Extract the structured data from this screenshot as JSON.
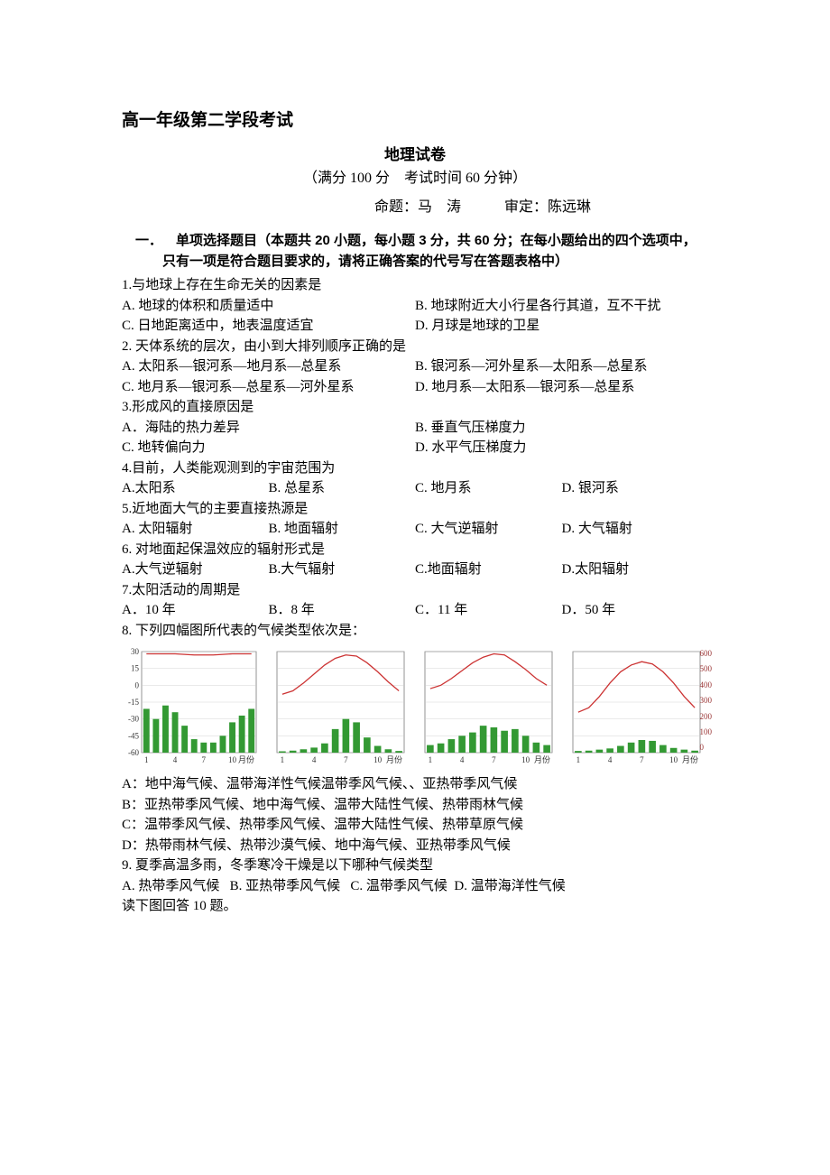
{
  "header": {
    "main_title": "高一年级第二学段考试",
    "sub_title": "地理试卷",
    "exam_info": "（满分 100 分 考试时间 60 分钟）",
    "author_info": "命题：马 涛   审定：陈远琳"
  },
  "section1": {
    "title": "一． 单项选择题目（本题共 20 小题，每小题 3 分，共 60 分；在每小题给出的四个选项中，只有一项是符合题目要求的，请将正确答案的代号写在答题表格中）"
  },
  "q1": {
    "text": "1.与地球上存在生命无关的因素是",
    "a": "A. 地球的体积和质量适中",
    "b": "B. 地球附近大小行星各行其道，互不干扰",
    "c": "C. 日地距离适中，地表温度适宜",
    "d": "D. 月球是地球的卫星"
  },
  "q2": {
    "text": "2. 天体系统的层次，由小到大排列顺序正确的是",
    "a": "A. 太阳系—银河系—地月系—总星系",
    "b": "B. 银河系—河外星系—太阳系—总星系",
    "c": "C. 地月系—银河系—总星系—河外星系",
    "d": "D. 地月系—太阳系—银河系—总星系"
  },
  "q3": {
    "text": "3.形成风的直接原因是",
    "a": "A．海陆的热力差异",
    "b": "B. 垂直气压梯度力",
    "c": "C. 地转偏向力",
    "d": "D. 水平气压梯度力"
  },
  "q4": {
    "text": "4.目前，人类能观测到的宇宙范围为",
    "a": "A.太阳系",
    "b": "B. 总星系",
    "c": "C. 地月系",
    "d": "D. 银河系"
  },
  "q5": {
    "text": "5.近地面大气的主要直接热源是",
    "a": "A. 太阳辐射",
    "b": "B. 地面辐射",
    "c": "C. 大气逆辐射",
    "d": "D. 大气辐射"
  },
  "q6": {
    "text": "6. 对地面起保温效应的辐射形式是",
    "a": "A.大气逆辐射",
    "b": "B.大气辐射",
    "c": "C.地面辐射",
    "d": "D.太阳辐射"
  },
  "q7": {
    "text": "7.太阳活动的周期是",
    "a": "A．10 年",
    "b": "B．8 年",
    "c": "C．11 年",
    "d": "D．50 年"
  },
  "q8": {
    "text": "8. 下列四幅图所代表的气候类型依次是：",
    "a": "A：地中海气候、温带海洋性气候温带季风气候、、亚热带季风气候",
    "b": "B：亚热带季风气候、地中海气候、温带大陆性气候、热带雨林气候",
    "c": "C：温带季风气候、热带季风气候、温带大陆性气候、热带草原气候",
    "d": "D：热带雨林气候、热带沙漠气候、地中海气候、亚热带季风气候"
  },
  "q9": {
    "text": "9. 夏季高温多雨，冬季寒冷干燥是以下哪种气候类型",
    "a": "A. 热带季风气候",
    "b": "B. 亚热带季风气候",
    "c": "C. 温带季风气候",
    "d": "D. 温带海洋性气候"
  },
  "q10_intro": "读下图回答 10 题。",
  "charts": {
    "y_left_labels": [
      "30",
      "15",
      "0",
      "-15",
      "-30",
      "-45",
      "-60"
    ],
    "y_right_labels": [
      "600",
      "500",
      "400",
      "300",
      "200",
      "100",
      "0"
    ],
    "x_labels": [
      "1",
      "4",
      "7",
      "10",
      "月份"
    ],
    "line_color": "#cc3333",
    "bar_color": "#339933",
    "axis_color": "#666",
    "grid_color": "#ccc",
    "chart1": {
      "temps": [
        28,
        28,
        28,
        28,
        27.5,
        27,
        27,
        27,
        27.5,
        28,
        28,
        28
      ],
      "precip": [
        260,
        200,
        280,
        240,
        160,
        80,
        60,
        60,
        100,
        180,
        220,
        260
      ]
    },
    "chart2": {
      "temps": [
        -8,
        -5,
        2,
        10,
        18,
        24,
        27,
        26,
        20,
        12,
        3,
        -5
      ],
      "precip": [
        8,
        12,
        20,
        30,
        55,
        140,
        200,
        180,
        90,
        40,
        20,
        10
      ]
    },
    "chart3": {
      "temps": [
        -3,
        0,
        6,
        13,
        20,
        25,
        28,
        27,
        21,
        14,
        6,
        0
      ],
      "precip": [
        45,
        55,
        80,
        100,
        120,
        160,
        150,
        130,
        140,
        100,
        60,
        45
      ]
    },
    "chart4": {
      "temps": [
        -24,
        -20,
        -10,
        2,
        12,
        18,
        21,
        19,
        12,
        2,
        -10,
        -20
      ],
      "precip": [
        10,
        12,
        18,
        25,
        40,
        60,
        75,
        70,
        45,
        28,
        18,
        12
      ]
    }
  }
}
